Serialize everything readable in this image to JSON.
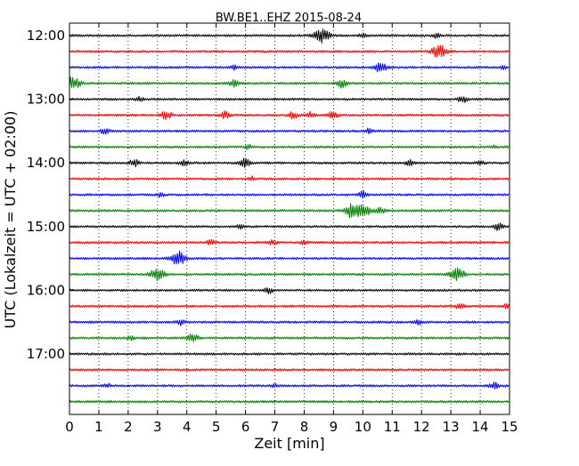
{
  "chart_data": {
    "type": "line",
    "title": "BW.BE1..EHZ 2015-08-24",
    "xlabel": "Zeit  [min]",
    "ylabel": "UTC (Lokalzeit = UTC + 02:00)",
    "xlim": [
      0,
      15
    ],
    "x_ticks": [
      "0",
      "1",
      "2",
      "3",
      "4",
      "5",
      "6",
      "7",
      "8",
      "9",
      "10",
      "11",
      "12",
      "13",
      "14",
      "15"
    ],
    "y_ticks": [
      "12:00",
      "13:00",
      "14:00",
      "15:00",
      "16:00",
      "17:00"
    ],
    "grid": "vertical dotted",
    "trace_colors": [
      "#000000",
      "#ff0000",
      "#0000ff",
      "#008000"
    ],
    "traces": [
      {
        "label": "12:00",
        "events": [
          [
            8.6,
            1.0
          ],
          [
            10.0,
            0.3
          ],
          [
            12.5,
            0.3
          ]
        ]
      },
      {
        "label": "12:15",
        "events": [
          [
            12.6,
            1.0
          ]
        ]
      },
      {
        "label": "12:30",
        "events": [
          [
            5.6,
            0.3
          ],
          [
            10.6,
            0.7
          ],
          [
            14.8,
            0.2
          ]
        ]
      },
      {
        "label": "12:45",
        "events": [
          [
            0.1,
            1.0
          ],
          [
            5.6,
            0.5
          ],
          [
            9.3,
            0.6
          ]
        ]
      },
      {
        "label": "13:00",
        "events": [
          [
            2.4,
            0.3
          ],
          [
            13.4,
            0.5
          ]
        ]
      },
      {
        "label": "13:15",
        "events": [
          [
            3.3,
            0.6
          ],
          [
            5.3,
            0.5
          ],
          [
            7.6,
            0.5
          ],
          [
            8.2,
            0.4
          ],
          [
            9.0,
            0.5
          ]
        ]
      },
      {
        "label": "13:30",
        "events": [
          [
            1.2,
            0.4
          ],
          [
            10.2,
            0.3
          ]
        ]
      },
      {
        "label": "13:45",
        "events": [
          [
            6.1,
            0.3
          ],
          [
            14.5,
            0.2
          ]
        ]
      },
      {
        "label": "14:00",
        "events": [
          [
            2.2,
            0.5
          ],
          [
            3.9,
            0.4
          ],
          [
            6.0,
            0.6
          ],
          [
            11.6,
            0.4
          ],
          [
            14.0,
            0.3
          ]
        ]
      },
      {
        "label": "14:15",
        "events": [
          [
            6.2,
            0.3
          ]
        ]
      },
      {
        "label": "14:30",
        "events": [
          [
            3.1,
            0.3
          ],
          [
            10.0,
            0.5
          ]
        ]
      },
      {
        "label": "14:45",
        "events": [
          [
            9.6,
            0.9
          ],
          [
            10.0,
            1.0
          ],
          [
            10.6,
            0.5
          ]
        ]
      },
      {
        "label": "15:00",
        "events": [
          [
            5.8,
            0.3
          ],
          [
            14.6,
            0.5
          ]
        ]
      },
      {
        "label": "15:15",
        "events": [
          [
            4.8,
            0.4
          ],
          [
            6.9,
            0.4
          ],
          [
            8.0,
            0.3
          ]
        ]
      },
      {
        "label": "15:30",
        "events": [
          [
            3.7,
            1.0
          ]
        ]
      },
      {
        "label": "15:45",
        "events": [
          [
            3.0,
            0.9
          ],
          [
            13.2,
            1.0
          ]
        ]
      },
      {
        "label": "16:00",
        "events": [
          [
            6.8,
            0.4
          ]
        ]
      },
      {
        "label": "16:15",
        "events": [
          [
            13.3,
            0.4
          ],
          [
            14.9,
            0.3
          ]
        ]
      },
      {
        "label": "16:30",
        "events": [
          [
            3.8,
            0.4
          ],
          [
            11.9,
            0.3
          ]
        ]
      },
      {
        "label": "16:45",
        "events": [
          [
            2.1,
            0.3
          ],
          [
            4.2,
            0.6
          ]
        ]
      },
      {
        "label": "17:00",
        "events": []
      },
      {
        "label": "17:15",
        "events": []
      },
      {
        "label": "17:30",
        "events": [
          [
            1.3,
            0.3
          ],
          [
            7.0,
            0.2
          ],
          [
            14.5,
            0.5
          ]
        ]
      },
      {
        "label": "17:45",
        "events": []
      }
    ]
  }
}
